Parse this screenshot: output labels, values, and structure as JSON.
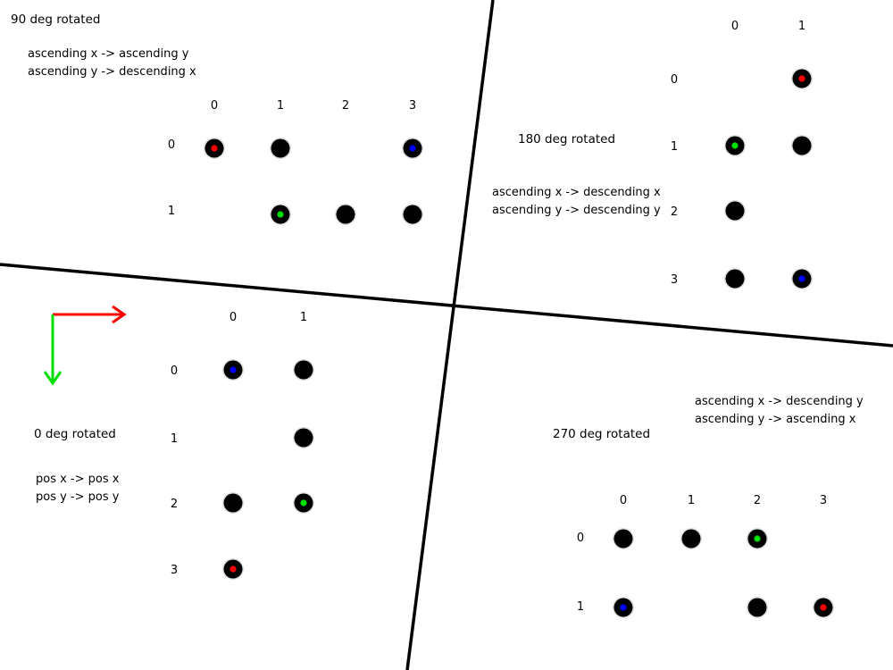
{
  "colors": {
    "background": "#ffffff",
    "dot": "#000000",
    "red": "#ff0000",
    "green": "#00e000",
    "blue": "#0000ff",
    "divider": "#000000"
  },
  "quadrants": {
    "top_left": {
      "title": "90 deg rotated",
      "rule1": "ascending x -> ascending y",
      "rule2": "ascending y -> descending x",
      "col_labels": [
        "0",
        "1",
        "2",
        "3"
      ],
      "row_labels": [
        "0",
        "1"
      ],
      "points": [
        {
          "col": 0,
          "row": 0,
          "marker": "red"
        },
        {
          "col": 1,
          "row": 0,
          "marker": "none"
        },
        {
          "col": 3,
          "row": 0,
          "marker": "blue"
        },
        {
          "col": 1,
          "row": 1,
          "marker": "green"
        },
        {
          "col": 2,
          "row": 1,
          "marker": "none"
        },
        {
          "col": 3,
          "row": 1,
          "marker": "none"
        }
      ]
    },
    "top_right": {
      "title": "180 deg rotated",
      "rule1": "ascending x -> descending x",
      "rule2": "ascending y -> descending y",
      "col_labels": [
        "0",
        "1"
      ],
      "row_labels": [
        "0",
        "1",
        "2",
        "3"
      ],
      "points": [
        {
          "col": 1,
          "row": 0,
          "marker": "red"
        },
        {
          "col": 0,
          "row": 1,
          "marker": "green"
        },
        {
          "col": 1,
          "row": 1,
          "marker": "none"
        },
        {
          "col": 0,
          "row": 2,
          "marker": "none"
        },
        {
          "col": 0,
          "row": 3,
          "marker": "none"
        },
        {
          "col": 1,
          "row": 3,
          "marker": "blue"
        }
      ]
    },
    "bottom_left": {
      "title": "0 deg rotated",
      "rule1": "pos x -> pos x",
      "rule2": "pos y -> pos y",
      "col_labels": [
        "0",
        "1"
      ],
      "row_labels": [
        "0",
        "1",
        "2",
        "3"
      ],
      "points": [
        {
          "col": 0,
          "row": 0,
          "marker": "blue"
        },
        {
          "col": 1,
          "row": 0,
          "marker": "none"
        },
        {
          "col": 1,
          "row": 1,
          "marker": "none"
        },
        {
          "col": 0,
          "row": 2,
          "marker": "none"
        },
        {
          "col": 1,
          "row": 2,
          "marker": "green"
        },
        {
          "col": 0,
          "row": 3,
          "marker": "red"
        }
      ]
    },
    "bottom_right": {
      "title": "270 deg rotated",
      "rule1": "ascending x -> descending y",
      "rule2": "ascending y -> ascending x",
      "col_labels": [
        "0",
        "1",
        "2",
        "3"
      ],
      "row_labels": [
        "0",
        "1"
      ],
      "points": [
        {
          "col": 0,
          "row": 0,
          "marker": "none"
        },
        {
          "col": 1,
          "row": 0,
          "marker": "none"
        },
        {
          "col": 2,
          "row": 0,
          "marker": "green"
        },
        {
          "col": 0,
          "row": 1,
          "marker": "blue"
        },
        {
          "col": 2,
          "row": 1,
          "marker": "none"
        },
        {
          "col": 3,
          "row": 1,
          "marker": "red"
        }
      ]
    }
  },
  "axes_indicator": {
    "x_color": "#ff0000",
    "y_color": "#00e000"
  }
}
